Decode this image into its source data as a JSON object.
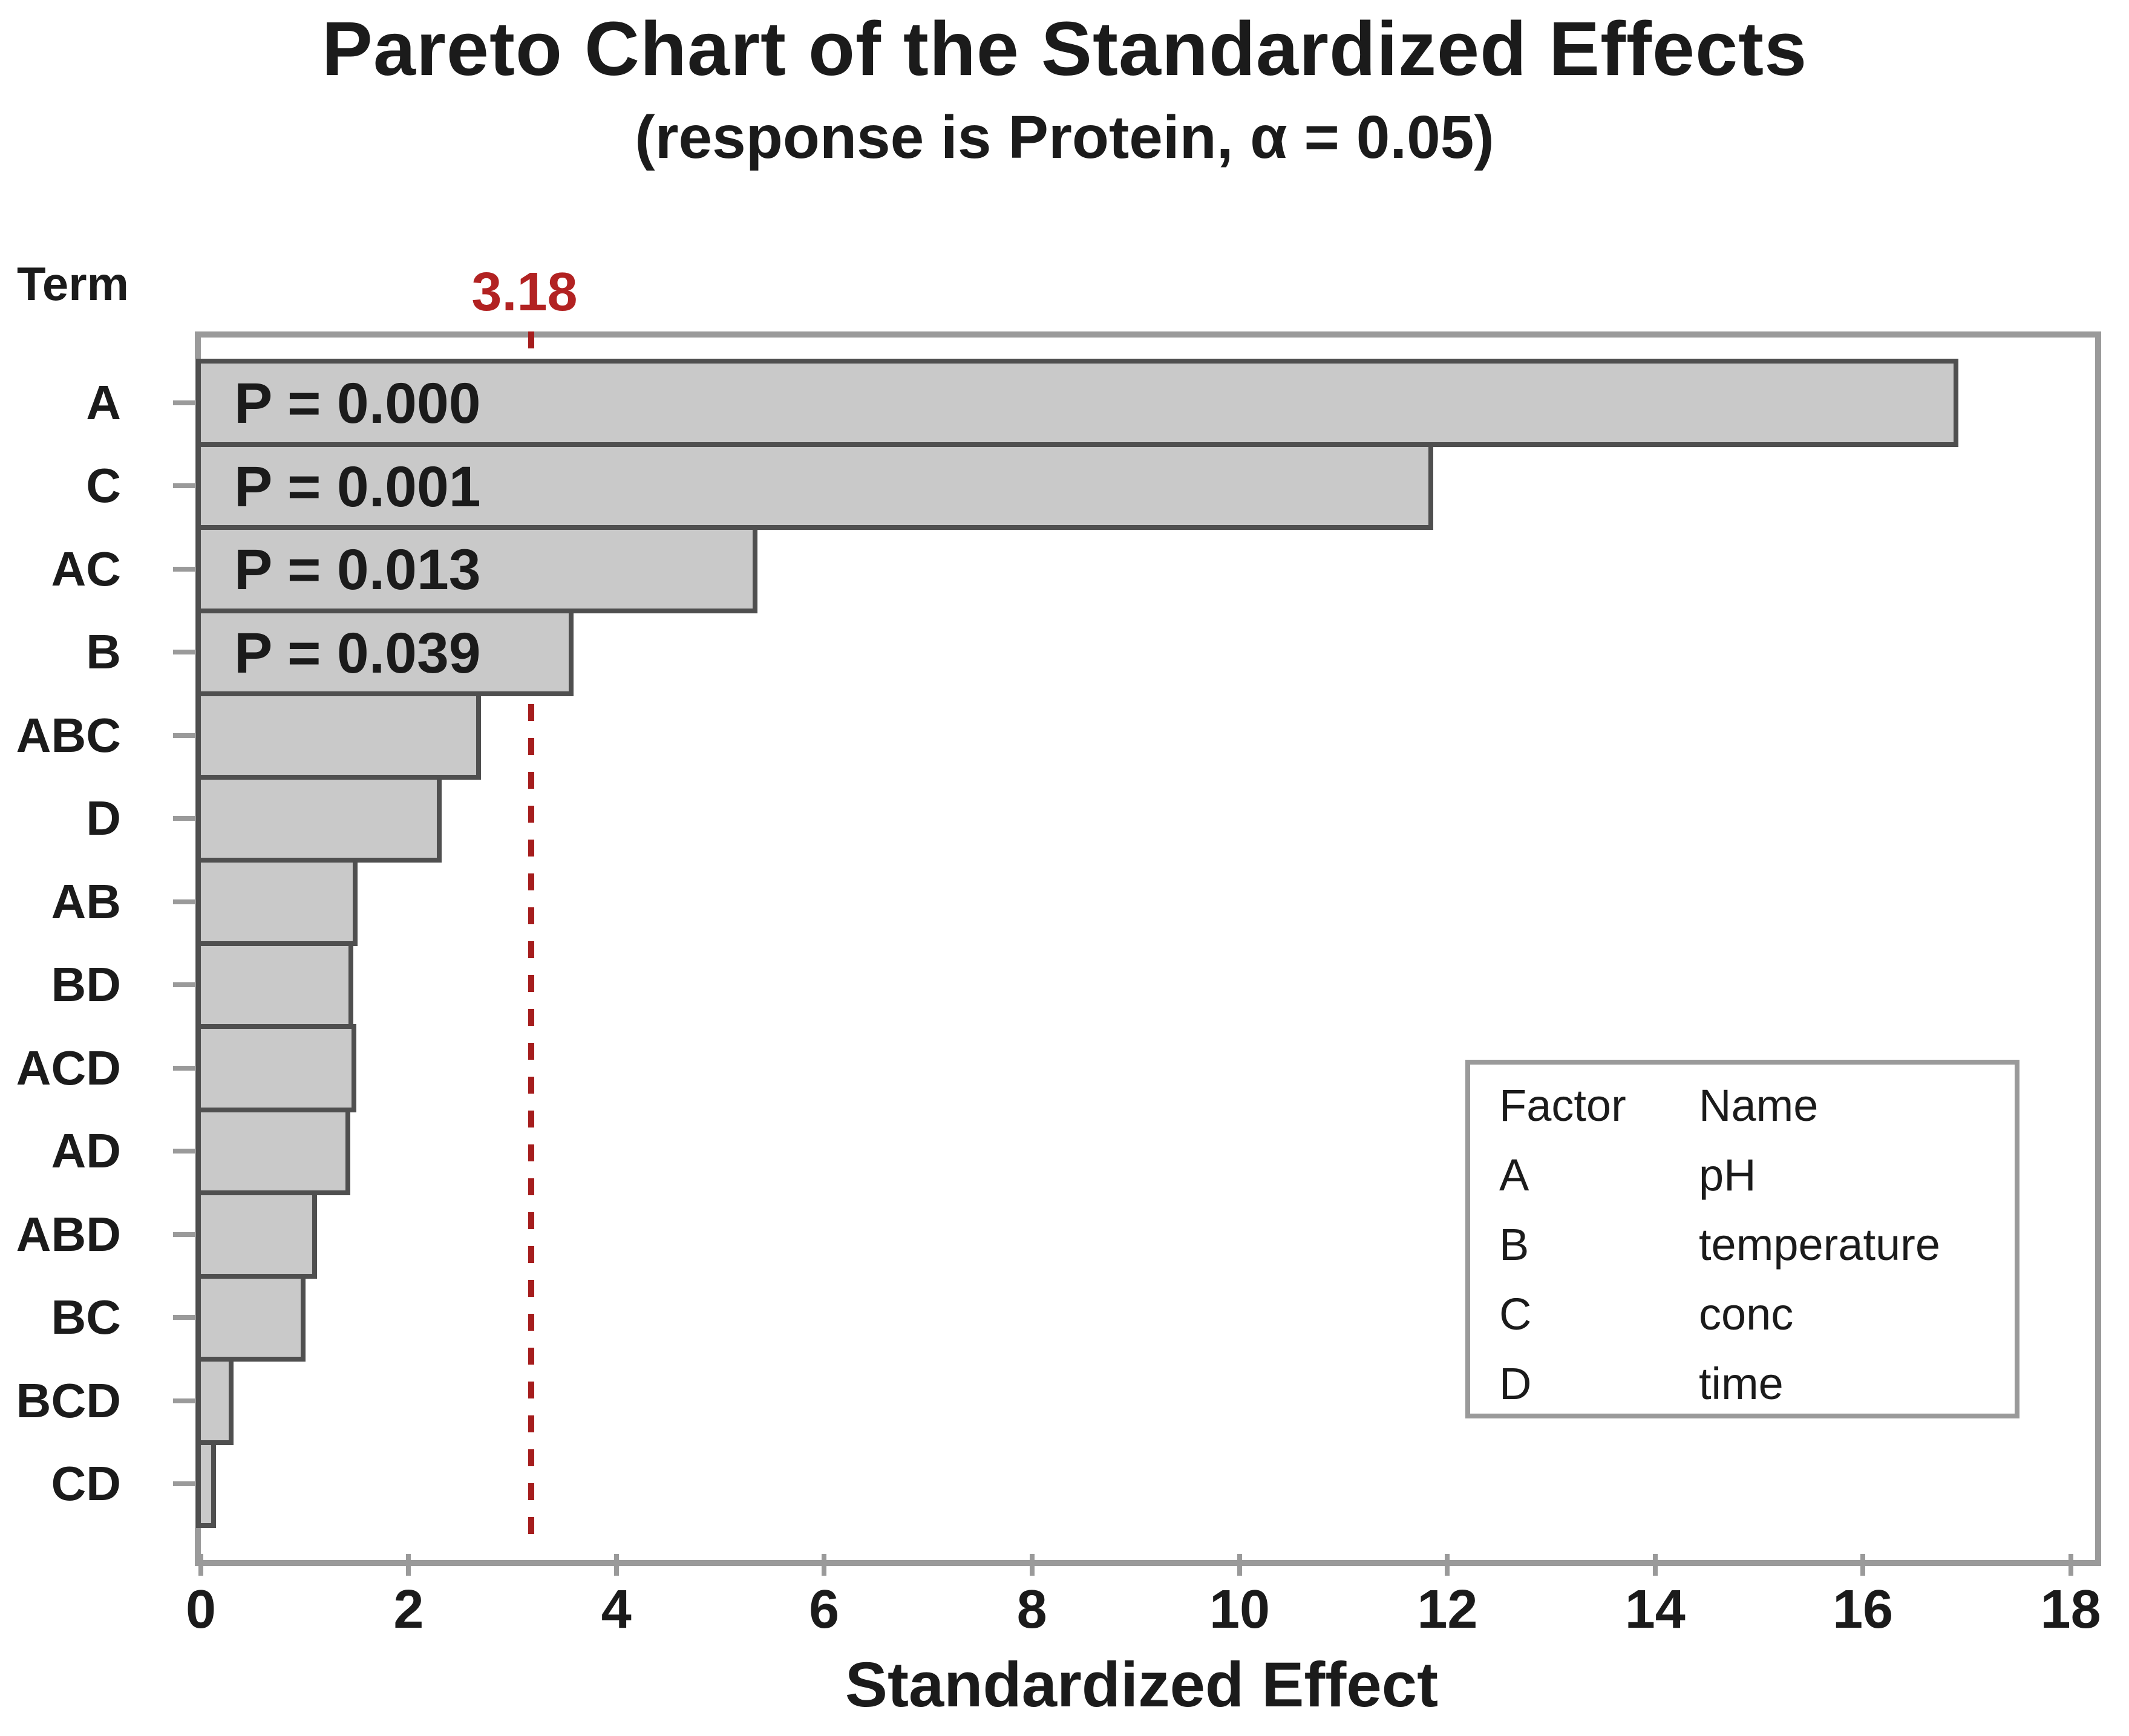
{
  "chart_data": {
    "type": "bar",
    "orientation": "horizontal",
    "title": "Pareto Chart of the Standardized Effects",
    "subtitle": "(response is Protein, α = 0.05)",
    "response": "Protein",
    "alpha": 0.05,
    "term_axis_label": "Term",
    "xlabel": "Standardized Effect",
    "xlim": [
      0,
      18.14
    ],
    "x_ticks": [
      0,
      2,
      4,
      6,
      8,
      10,
      12,
      14,
      16,
      18
    ],
    "grid": "off",
    "reference_line": {
      "value": 3.18,
      "label": "3.18"
    },
    "categories": [
      "A",
      "C",
      "AC",
      "B",
      "ABC",
      "D",
      "AB",
      "BD",
      "ACD",
      "AD",
      "ABD",
      "BC",
      "BCD",
      "CD"
    ],
    "values": [
      16.87,
      11.82,
      5.31,
      3.54,
      2.65,
      2.27,
      1.46,
      1.42,
      1.45,
      1.39,
      1.07,
      0.96,
      0.27,
      0.1
    ],
    "bar_annotations": [
      "P = 0.000",
      "P = 0.001",
      "P = 0.013",
      "P = 0.039",
      "",
      "",
      "",
      "",
      "",
      "",
      "",
      "",
      "",
      ""
    ],
    "legend": {
      "position": "lower-right",
      "headers": [
        "Factor",
        "Name"
      ],
      "rows": [
        [
          "A",
          "pH"
        ],
        [
          "B",
          "temperature"
        ],
        [
          "C",
          "conc"
        ],
        [
          "D",
          "time"
        ]
      ]
    },
    "colors": {
      "bar_fill": "#c9c9c9",
      "bar_border": "#4f4f4f",
      "frame": "#9a9a9a",
      "reference_line": "#a51d1d",
      "reference_label": "#b22222",
      "text": "#1b1b1b",
      "background": "#ffffff"
    }
  }
}
